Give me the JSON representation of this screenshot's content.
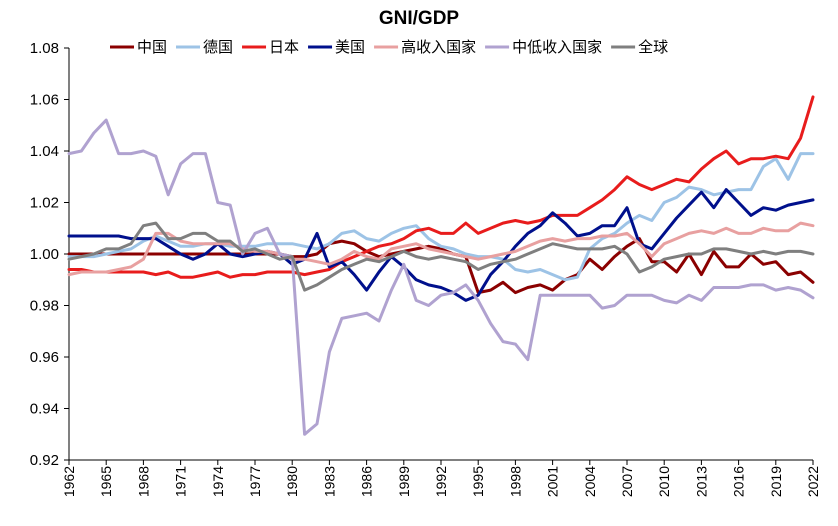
{
  "chart_data": {
    "type": "line",
    "title": "GNI/GDP",
    "xlabel": "",
    "ylabel": "",
    "ylim": [
      0.92,
      1.08
    ],
    "yticks": [
      "0.92",
      "0.94",
      "0.96",
      "0.98",
      "1.00",
      "1.02",
      "1.04",
      "1.06",
      "1.08"
    ],
    "xticks": [
      "1962",
      "1965",
      "1968",
      "1971",
      "1974",
      "1977",
      "1980",
      "1983",
      "1986",
      "1989",
      "1992",
      "1995",
      "1998",
      "2001",
      "2004",
      "2007",
      "2010",
      "2013",
      "2016",
      "2019",
      "2022"
    ],
    "grid": false,
    "legend_position": "top",
    "x": [
      1962,
      1963,
      1964,
      1965,
      1966,
      1967,
      1968,
      1969,
      1970,
      1971,
      1972,
      1973,
      1974,
      1975,
      1976,
      1977,
      1978,
      1979,
      1980,
      1981,
      1982,
      1983,
      1984,
      1985,
      1986,
      1987,
      1988,
      1989,
      1990,
      1991,
      1992,
      1993,
      1994,
      1995,
      1996,
      1997,
      1998,
      1999,
      2000,
      2001,
      2002,
      2003,
      2004,
      2005,
      2006,
      2007,
      2008,
      2009,
      2010,
      2011,
      2012,
      2013,
      2014,
      2015,
      2016,
      2017,
      2018,
      2019,
      2020,
      2021,
      2022
    ],
    "series": [
      {
        "name": "中国",
        "color": "#8B0000",
        "values": [
          1.0,
          1.0,
          1.0,
          1.0,
          1.0,
          1.0,
          1.0,
          1.0,
          1.0,
          1.0,
          1.0,
          1.0,
          1.0,
          1.0,
          1.0,
          1.0,
          1.0,
          1.0,
          0.999,
          0.999,
          1.0,
          1.004,
          1.005,
          1.004,
          1.001,
          0.999,
          1.0,
          1.001,
          1.002,
          1.003,
          1.002,
          1.0,
          0.999,
          0.985,
          0.986,
          0.989,
          0.985,
          0.987,
          0.988,
          0.986,
          0.99,
          0.992,
          0.998,
          0.994,
          0.999,
          1.003,
          1.006,
          0.997,
          0.997,
          0.993,
          1.0,
          0.992,
          1.001,
          0.995,
          0.995,
          1.0,
          0.996,
          0.997,
          0.992,
          0.993,
          0.989
        ]
      },
      {
        "name": "德国",
        "color": "#9DC3E6",
        "values": [
          0.999,
          0.999,
          0.999,
          1.0,
          1.001,
          1.002,
          1.005,
          1.007,
          1.005,
          1.003,
          1.003,
          1.004,
          1.004,
          1.003,
          1.003,
          1.003,
          1.004,
          1.004,
          1.004,
          1.003,
          1.002,
          1.004,
          1.008,
          1.009,
          1.006,
          1.005,
          1.008,
          1.01,
          1.011,
          1.006,
          1.003,
          1.002,
          1.0,
          0.999,
          0.999,
          0.998,
          0.994,
          0.993,
          0.994,
          0.992,
          0.99,
          0.991,
          1.002,
          1.006,
          1.008,
          1.012,
          1.015,
          1.013,
          1.02,
          1.022,
          1.026,
          1.025,
          1.023,
          1.024,
          1.025,
          1.025,
          1.034,
          1.037,
          1.029,
          1.039,
          1.039
        ]
      },
      {
        "name": "日本",
        "color": "#E81C1C",
        "values": [
          0.994,
          0.994,
          0.993,
          0.993,
          0.993,
          0.993,
          0.993,
          0.992,
          0.993,
          0.991,
          0.991,
          0.992,
          0.993,
          0.991,
          0.992,
          0.992,
          0.993,
          0.993,
          0.993,
          0.992,
          0.993,
          0.994,
          0.997,
          0.999,
          1.001,
          1.003,
          1.004,
          1.006,
          1.009,
          1.01,
          1.008,
          1.008,
          1.012,
          1.008,
          1.01,
          1.012,
          1.013,
          1.012,
          1.013,
          1.015,
          1.015,
          1.015,
          1.018,
          1.021,
          1.025,
          1.03,
          1.027,
          1.025,
          1.027,
          1.029,
          1.028,
          1.033,
          1.037,
          1.04,
          1.035,
          1.037,
          1.037,
          1.038,
          1.037,
          1.045,
          1.061
        ]
      },
      {
        "name": "美国",
        "color": "#00108C",
        "values": [
          1.007,
          1.007,
          1.007,
          1.007,
          1.007,
          1.006,
          1.006,
          1.006,
          1.003,
          1.0,
          0.998,
          1.0,
          1.004,
          1.0,
          0.999,
          1.0,
          1.001,
          1.0,
          0.996,
          0.998,
          1.008,
          0.995,
          0.997,
          0.992,
          0.986,
          0.993,
          0.999,
          0.995,
          0.99,
          0.988,
          0.987,
          0.985,
          0.982,
          0.984,
          0.992,
          0.997,
          1.003,
          1.008,
          1.011,
          1.016,
          1.012,
          1.007,
          1.008,
          1.011,
          1.011,
          1.018,
          1.004,
          1.002,
          1.008,
          1.014,
          1.019,
          1.024,
          1.018,
          1.025,
          1.02,
          1.015,
          1.018,
          1.017,
          1.019,
          1.02,
          1.021
        ]
      },
      {
        "name": "高收入国家",
        "color": "#E8A0A0",
        "values": [
          0.992,
          0.993,
          0.993,
          0.993,
          0.994,
          0.995,
          0.998,
          1.008,
          1.008,
          1.005,
          1.004,
          1.004,
          1.004,
          1.004,
          1.002,
          1.001,
          1.001,
          1.0,
          0.998,
          0.998,
          0.997,
          0.996,
          0.998,
          1.001,
          0.999,
          0.998,
          1.002,
          1.003,
          1.004,
          1.002,
          1.001,
          1.0,
          0.999,
          0.998,
          0.999,
          1.0,
          1.001,
          1.003,
          1.005,
          1.006,
          1.005,
          1.006,
          1.006,
          1.007,
          1.007,
          1.008,
          1.004,
          0.999,
          1.004,
          1.006,
          1.008,
          1.009,
          1.008,
          1.01,
          1.008,
          1.008,
          1.01,
          1.009,
          1.009,
          1.012,
          1.011
        ]
      },
      {
        "name": "中低收入国家",
        "color": "#B0A2D0",
        "values": [
          1.039,
          1.04,
          1.047,
          1.052,
          1.039,
          1.039,
          1.04,
          1.038,
          1.023,
          1.035,
          1.039,
          1.039,
          1.02,
          1.019,
          1.0,
          1.008,
          1.01,
          1.0,
          0.999,
          0.93,
          0.934,
          0.962,
          0.975,
          0.976,
          0.977,
          0.974,
          0.986,
          0.996,
          0.982,
          0.98,
          0.984,
          0.985,
          0.988,
          0.982,
          0.973,
          0.966,
          0.965,
          0.959,
          0.984,
          0.984,
          0.984,
          0.984,
          0.984,
          0.979,
          0.98,
          0.984,
          0.984,
          0.984,
          0.982,
          0.981,
          0.984,
          0.982,
          0.987,
          0.987,
          0.987,
          0.988,
          0.988,
          0.986,
          0.987,
          0.986,
          0.983
        ]
      },
      {
        "name": "全球",
        "color": "#7F7F7F",
        "values": [
          0.998,
          0.999,
          1.0,
          1.002,
          1.002,
          1.004,
          1.011,
          1.012,
          1.006,
          1.006,
          1.008,
          1.008,
          1.005,
          1.005,
          1.001,
          1.002,
          1.0,
          0.998,
          0.999,
          0.986,
          0.988,
          0.991,
          0.994,
          0.996,
          0.998,
          0.997,
          0.999,
          1.001,
          0.999,
          0.998,
          0.999,
          0.998,
          0.997,
          0.994,
          0.996,
          0.997,
          0.998,
          1.0,
          1.002,
          1.004,
          1.003,
          1.002,
          1.002,
          1.002,
          1.003,
          1.0,
          0.993,
          0.995,
          0.998,
          0.999,
          1.0,
          1.0,
          1.002,
          1.002,
          1.001,
          1.0,
          1.001,
          1.0,
          1.001,
          1.001,
          1.0
        ]
      }
    ]
  }
}
